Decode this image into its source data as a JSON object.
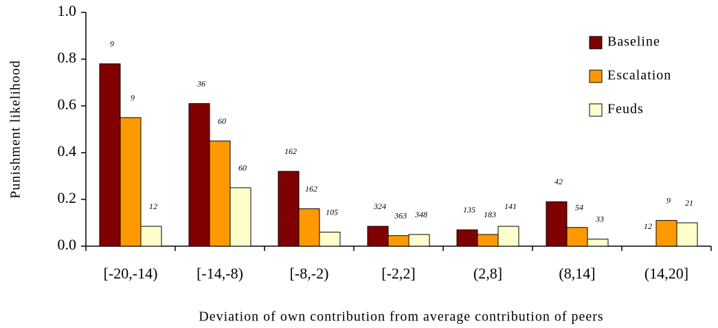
{
  "chart_data": {
    "type": "bar",
    "x_label": "Deviation of own contribution from average contribution of peers",
    "y_label": "Punishment likelihood",
    "categories": [
      "[-20,-14)",
      "[-14,-8)",
      "[-8,-2)",
      "[-2,2]",
      "(2,8]",
      "(8,14]",
      "(14,20]"
    ],
    "series": [
      {
        "name": "Baseline",
        "color": "#800000",
        "values": [
          0.78,
          0.61,
          0.32,
          0.085,
          0.07,
          0.19,
          0.0
        ],
        "n_labels": [
          "9",
          "36",
          "162",
          "324",
          "135",
          "42",
          "12"
        ]
      },
      {
        "name": "Escalation",
        "color": "#ff9900",
        "values": [
          0.55,
          0.45,
          0.16,
          0.045,
          0.05,
          0.08,
          0.11
        ],
        "n_labels": [
          "9",
          "60",
          "162",
          "363",
          "183",
          "54",
          "9"
        ]
      },
      {
        "name": "Feuds",
        "color": "#ffffcc",
        "values": [
          0.085,
          0.25,
          0.06,
          0.05,
          0.085,
          0.03,
          0.1
        ],
        "n_labels": [
          "12",
          "60",
          "105",
          "348",
          "141",
          "33",
          "21"
        ]
      }
    ],
    "ylim": [
      0,
      1
    ],
    "yticks": [
      {
        "value": 0,
        "label": "0.0"
      },
      {
        "value": 0.2,
        "label": "0.2"
      },
      {
        "value": 0.4,
        "label": "0.4"
      },
      {
        "value": 0.6,
        "label": "0.6"
      },
      {
        "value": 0.8,
        "label": "0.8"
      },
      {
        "value": 1,
        "label": "1.0"
      }
    ],
    "legend": "top-right"
  }
}
